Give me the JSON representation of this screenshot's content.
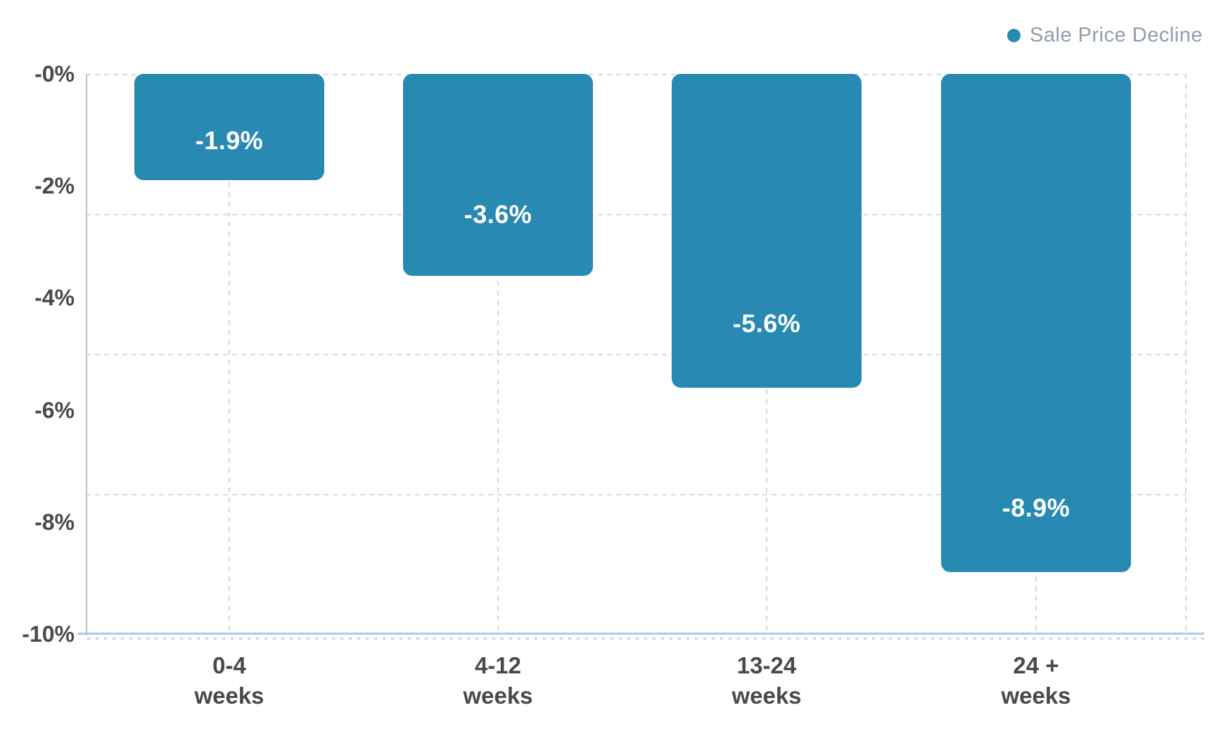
{
  "legend": {
    "label": "Sale Price Decline"
  },
  "colors": {
    "bar_fill": "#2889b2",
    "value_label": "#ffffff",
    "axis_text": "#474a4d",
    "legend_text": "#8f9dab",
    "gridline": "#d9dcdf",
    "gridline_v": "#d3d7da",
    "y_axis_line": "#b8c0c8",
    "x_axis_line": "#aac9e8",
    "x_axis_dotted": "#c5d3e2"
  },
  "chart_data": {
    "type": "bar",
    "orientation": "vertical",
    "categories": [
      "0-4 weeks",
      "4-12 weeks",
      "13-24 weeks",
      "24 + weeks"
    ],
    "category_label_lines": [
      [
        "0-4",
        "weeks"
      ],
      [
        "4-12",
        "weeks"
      ],
      [
        "13-24",
        "weeks"
      ],
      [
        "24 +",
        "weeks"
      ]
    ],
    "series": [
      {
        "name": "Sale Price Decline",
        "values": [
          -1.9,
          -3.6,
          -5.6,
          -8.9
        ]
      }
    ],
    "data_labels": [
      "-1.9%",
      "-3.6%",
      "-5.6%",
      "-8.9%"
    ],
    "y_tick_labels": [
      "-0%",
      "-2%",
      "-4%",
      "-6%",
      "-8%",
      "-10%"
    ],
    "y_tick_values": [
      0,
      -2,
      -4,
      -6,
      -8,
      -10
    ],
    "ylim": [
      0,
      -10
    ],
    "gridline_values": [
      0,
      -2.5,
      -5,
      -7.5
    ],
    "grid": "dashed horizontal lines every -2.5%, dashed vertical lines at category centers and right edge, dotted line under x-axis",
    "legend_position": "top-right"
  }
}
